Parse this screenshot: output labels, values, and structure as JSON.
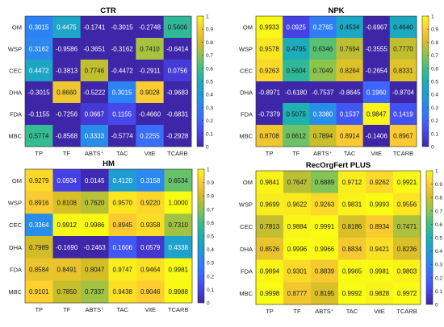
{
  "colorbar": {
    "ticks": [
      "0",
      "0.1",
      "0.2",
      "0.3",
      "0.4",
      "0.5",
      "0.6",
      "0.7",
      "0.8",
      "0.9",
      "1"
    ],
    "colormap": "parula",
    "stops": [
      "#3e26a8",
      "#4743e8",
      "#3e66fd",
      "#2c84f4",
      "#1e9cd7",
      "#1bb0b3",
      "#3ebf87",
      "#8ac550",
      "#d2bd26",
      "#fdcb32",
      "#f9fb14"
    ]
  },
  "chart_data": [
    {
      "type": "heatmap",
      "title": "CTR",
      "rows": [
        "OM",
        "WSP",
        "CEC",
        "DHA",
        "FDA",
        "MBC"
      ],
      "columns": [
        "TP",
        "TF",
        "ABTS⁺",
        "TAC",
        "VitE",
        "TCARB"
      ],
      "values": [
        [
          0.3015,
          0.4475,
          -0.1741,
          -0.3015,
          -0.2748,
          0.5606
        ],
        [
          0.3162,
          -0.9586,
          -0.3651,
          -0.3162,
          0.741,
          -0.6414
        ],
        [
          0.4472,
          -0.3813,
          0.7746,
          -0.4472,
          -0.2911,
          0.0756
        ],
        [
          -0.3015,
          0.866,
          -0.5222,
          0.3015,
          0.9028,
          -0.9683
        ],
        [
          -0.1155,
          -0.7256,
          0.0667,
          0.1155,
          -0.466,
          -0.6831
        ],
        [
          0.5774,
          -0.8568,
          0.3333,
          -0.5774,
          0.2255,
          -0.2928
        ]
      ],
      "labels": [
        [
          "0.3015",
          "0.4475",
          "-0.1741",
          "-0.3015",
          "-0.2748",
          "0.5606"
        ],
        [
          "0.3162",
          "-0.9586",
          "-0.3651",
          "-0.3162",
          "0.7410",
          "-0.6414"
        ],
        [
          "0.4472",
          "-0.3813",
          "0.7746",
          "-0.4472",
          "-0.2911",
          "0.0756"
        ],
        [
          "-0.3015",
          "0.8660",
          "-0.5222",
          "0.3015",
          "0.9028",
          "-0.9683"
        ],
        [
          "-0.1155",
          "-0.7256",
          "0.0667",
          "0.1155",
          "-0.4660",
          "-0.6831"
        ],
        [
          "0.5774",
          "-0.8568",
          "0.3333",
          "-0.5774",
          "0.2255",
          "-0.2928"
        ]
      ],
      "clim": [
        0,
        1
      ]
    },
    {
      "type": "heatmap",
      "title": "NPK",
      "rows": [
        "OM",
        "WSP",
        "CEC",
        "DHA",
        "FDA",
        "MBC"
      ],
      "columns": [
        "TP",
        "TF",
        "ABTS⁺",
        "TAC",
        "VitE",
        "TCARB"
      ],
      "values": [
        [
          0.9933,
          0.0925,
          0.2765,
          0.4534,
          -0.6967,
          0.464
        ],
        [
          0.9578,
          0.4795,
          0.6346,
          0.7694,
          -0.3555,
          0.777
        ],
        [
          0.9263,
          0.5604,
          0.7049,
          0.8264,
          -0.2654,
          0.8331
        ],
        [
          -0.8971,
          -0.618,
          -0.7537,
          -0.8645,
          0.196,
          -0.8704
        ],
        [
          -0.7379,
          0.5075,
          0.338,
          0.1537,
          0.9847,
          0.1419
        ],
        [
          0.8708,
          0.6612,
          0.7894,
          0.8914,
          -0.1406,
          0.8967
        ]
      ],
      "labels": [
        [
          "0.9933",
          "0.0925",
          "0.2765",
          "0.4534",
          "-0.6967",
          "0.4640"
        ],
        [
          "0.9578",
          "0.4795",
          "0.6346",
          "0.7694",
          "-0.3555",
          "0.7770"
        ],
        [
          "0.9263",
          "0.5604",
          "0.7049",
          "0.8264",
          "-0.2654",
          "0.8331"
        ],
        [
          "-0.8971",
          "-0.6180",
          "-0.7537",
          "-0.8645",
          "0.1960",
          "-0.8704"
        ],
        [
          "-0.7379",
          "0.5075",
          "0.3380",
          "0.1537",
          "0.9847",
          "0.1419"
        ],
        [
          "0.8708",
          "0.6612",
          "0.7894",
          "0.8914",
          "-0.1406",
          "0.8967"
        ]
      ],
      "clim": [
        0,
        1
      ]
    },
    {
      "type": "heatmap",
      "title": "HM",
      "rows": [
        "OM",
        "WSP",
        "CEC",
        "DHA",
        "FDA",
        "MBC"
      ],
      "columns": [
        "TP",
        "TF",
        "ABTS⁺",
        "TAC",
        "VitE",
        "TCARB"
      ],
      "values": [
        [
          0.9279,
          0.0934,
          0.0145,
          0.412,
          0.3158,
          0.6534
        ],
        [
          0.8916,
          0.8108,
          0.762,
          0.957,
          0.922,
          1.0
        ],
        [
          0.3364,
          0.9912,
          0.9986,
          0.8945,
          0.9358,
          0.731
        ],
        [
          0.7989,
          -0.169,
          -0.2463,
          0.1606,
          0.0579,
          0.4338
        ],
        [
          0.8584,
          0.8491,
          0.8047,
          0.9747,
          0.9464,
          0.9981
        ],
        [
          0.9101,
          0.785,
          0.7337,
          0.9438,
          0.9046,
          0.9988
        ]
      ],
      "labels": [
        [
          "0.9279",
          "0.0934",
          "0.0145",
          "0.4120",
          "0.3158",
          "0.6534"
        ],
        [
          "0.8916",
          "0.8108",
          "0.7620",
          "0.9570",
          "0.9220",
          "1.0000"
        ],
        [
          "0.3364",
          "0.9912",
          "0.9986",
          "0.8945",
          "0.9358",
          "0.7310"
        ],
        [
          "0.7989",
          "-0.1690",
          "-0.2463",
          "0.1606",
          "0.0579",
          "0.4338"
        ],
        [
          "0.8584",
          "0.8491",
          "0.8047",
          "0.9747",
          "0.9464",
          "0.9981"
        ],
        [
          "0.9101",
          "0.7850",
          "0.7337",
          "0.9438",
          "0.9046",
          "0.9988"
        ]
      ],
      "clim": [
        0,
        1
      ]
    },
    {
      "type": "heatmap",
      "title": "RecOrgFert PLUS",
      "rows": [
        "OM",
        "WSP",
        "CEC",
        "DHA",
        "FDA",
        "MBC"
      ],
      "columns": [
        "TP",
        "TF",
        "ABTS⁺",
        "TAC",
        "VitE",
        "TCARB"
      ],
      "values": [
        [
          0.9841,
          0.7647,
          0.6889,
          0.9712,
          0.9262,
          0.9921
        ],
        [
          0.9699,
          0.9622,
          0.9263,
          0.9831,
          0.9993,
          0.9556
        ],
        [
          0.7813,
          0.9884,
          0.9991,
          0.8186,
          0.8934,
          0.7471
        ],
        [
          0.8526,
          0.9996,
          0.9966,
          0.8834,
          0.9421,
          0.8236
        ],
        [
          0.9894,
          0.9301,
          0.8839,
          0.9965,
          0.9981,
          0.9803
        ],
        [
          0.9998,
          0.8777,
          0.8195,
          0.9992,
          0.9828,
          0.9972
        ]
      ],
      "labels": [
        [
          "0.9841",
          "0.7647",
          "0.6889",
          "0.9712",
          "0.9262",
          "0.9921"
        ],
        [
          "0.9699",
          "0.9622",
          "0.9263",
          "0.9831",
          "0.9993",
          "0.9556"
        ],
        [
          "0.7813",
          "0.9884",
          "0.9991",
          "0.8186",
          "0.8934",
          "0.7471"
        ],
        [
          "0.8526",
          "0.9996",
          "0.9966",
          "0.8834",
          "0.9421",
          "0.8236"
        ],
        [
          "0.9894",
          "0.9301",
          "0.8839",
          "0.9965",
          "0.9981",
          "0.9803"
        ],
        [
          "0.9998",
          "0.8777",
          "0.8195",
          "0.9992",
          "0.9828",
          "0.9972"
        ]
      ],
      "clim": [
        0,
        1
      ]
    }
  ]
}
